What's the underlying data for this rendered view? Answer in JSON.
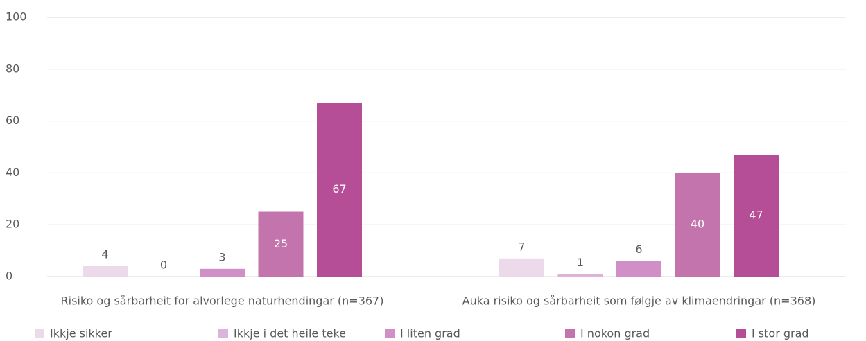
{
  "chart_data": {
    "type": "bar",
    "categories": [
      "Risiko og sårbarheit for alvorlege naturhendingar (n=367)",
      "Auka risiko og sårbarheit som følgje av klimaendringar (n=368)"
    ],
    "series": [
      {
        "name": "Ikkje sikker",
        "color": "#ecd9ea",
        "values": [
          4,
          7
        ]
      },
      {
        "name": "Ikkje i det heile teke",
        "color": "#ddb4d9",
        "values": [
          0,
          1
        ]
      },
      {
        "name": "I liten grad",
        "color": "#d08fc6",
        "values": [
          3,
          6
        ]
      },
      {
        "name": "I nokon grad",
        "color": "#c474ad",
        "values": [
          25,
          40
        ]
      },
      {
        "name": "I stor grad",
        "color": "#b54d97",
        "values": [
          67,
          47
        ]
      }
    ],
    "ylim": [
      0,
      100
    ],
    "yticks": [
      0,
      20,
      40,
      60,
      80,
      100
    ],
    "grid": true,
    "legend": "bottom"
  }
}
